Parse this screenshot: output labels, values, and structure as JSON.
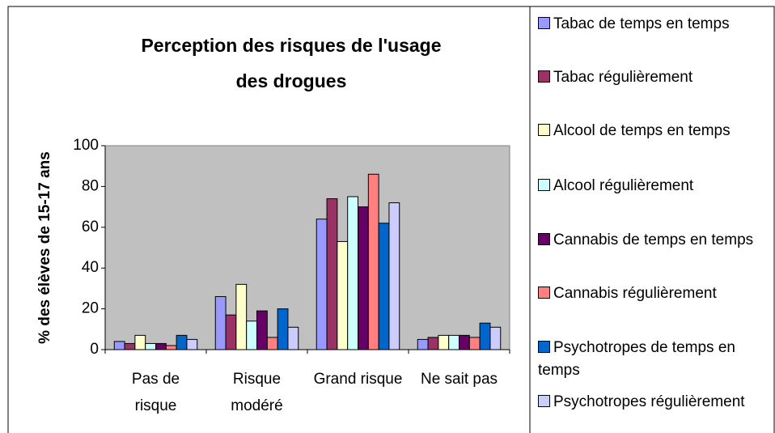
{
  "chart_data": {
    "type": "bar",
    "title": "Perception des risques de l'usage des drogues",
    "y_label": "% des élèves de 15-17 ans",
    "categories": [
      "Pas de risque",
      "Risque modéré",
      "Grand risque",
      "Ne sait pas"
    ],
    "series": [
      {
        "name": "Tabac de temps en temps",
        "color": "#9999ff",
        "values": [
          4,
          26,
          64,
          5
        ]
      },
      {
        "name": "Tabac régulièrement",
        "color": "#993366",
        "values": [
          3,
          17,
          74,
          6
        ]
      },
      {
        "name": "Alcool de temps en temps",
        "color": "#ffffcc",
        "values": [
          7,
          32,
          53,
          7
        ]
      },
      {
        "name": "Alcool régulièrement",
        "color": "#ccffff",
        "values": [
          3,
          14,
          75,
          7
        ]
      },
      {
        "name": "Cannabis de temps en temps",
        "color": "#660066",
        "values": [
          3,
          19,
          70,
          7
        ]
      },
      {
        "name": "Cannabis régulièrement",
        "color": "#ff8080",
        "values": [
          2,
          6,
          86,
          6
        ]
      },
      {
        "name": "Psychotropes de temps en temps",
        "color": "#0066cc",
        "values": [
          7,
          20,
          62,
          13
        ]
      },
      {
        "name": "Psychotropes régulièrement",
        "color": "#ccccff",
        "values": [
          5,
          11,
          72,
          11
        ]
      }
    ],
    "ylim": [
      0,
      100
    ],
    "yticks": [
      0,
      20,
      40,
      60,
      80,
      100
    ],
    "grid": false
  }
}
